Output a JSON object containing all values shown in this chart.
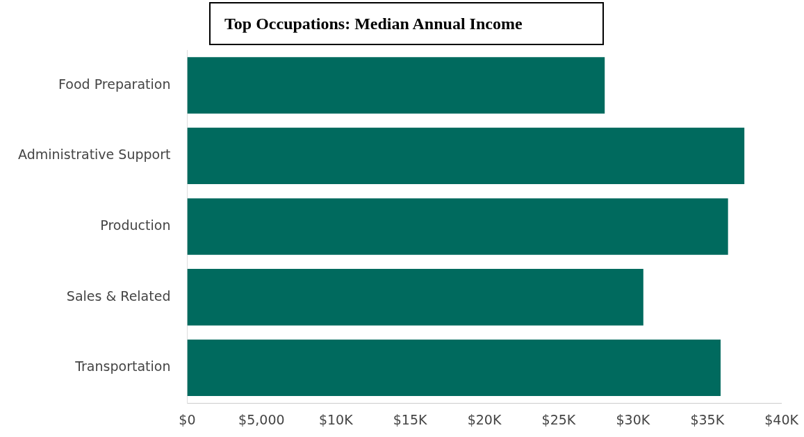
{
  "chart_data": {
    "type": "bar",
    "orientation": "horizontal",
    "title": "Top Occupations: Median Annual Income",
    "categories": [
      "Food Preparation",
      "Administrative Support",
      "Production",
      "Sales & Related",
      "Transportation"
    ],
    "values": [
      28100,
      37500,
      36400,
      30700,
      35900
    ],
    "color": "#006a5e",
    "xlim": [
      0,
      40000
    ],
    "xticks": [
      {
        "value": 0,
        "label": "$0"
      },
      {
        "value": 5000,
        "label": "$5,000"
      },
      {
        "value": 10000,
        "label": "$10K"
      },
      {
        "value": 15000,
        "label": "$15K"
      },
      {
        "value": 20000,
        "label": "$20K"
      },
      {
        "value": 25000,
        "label": "$25K"
      },
      {
        "value": 30000,
        "label": "$30K"
      },
      {
        "value": 35000,
        "label": "$35K"
      },
      {
        "value": 40000,
        "label": "$40K"
      }
    ],
    "grid": false,
    "legend": false
  }
}
